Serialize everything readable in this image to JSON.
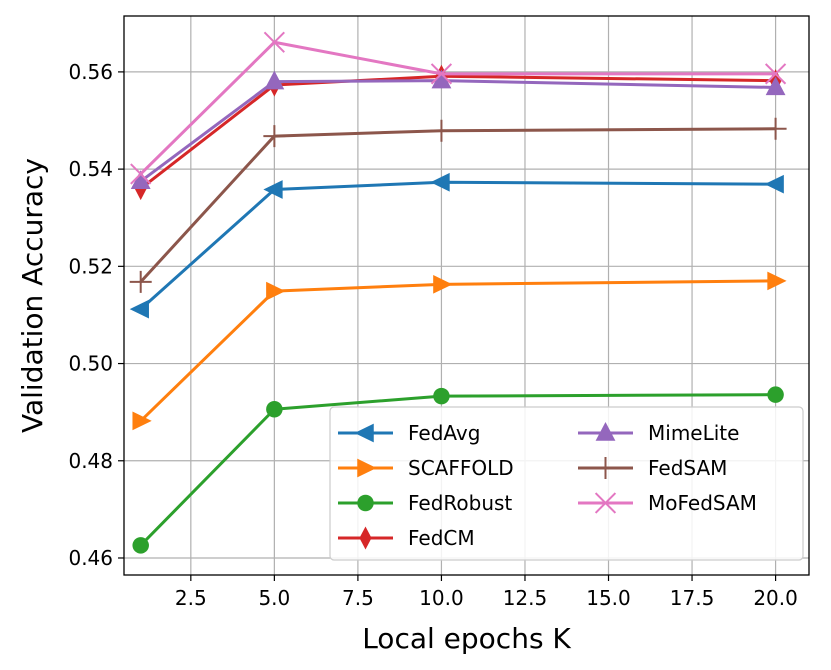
{
  "chart_data": {
    "type": "line",
    "title": "",
    "xlabel": "Local epochs K",
    "ylabel": "Validation Accuracy",
    "xlim": [
      0.5,
      21.0
    ],
    "ylim": [
      0.4565,
      0.5715
    ],
    "xticks": [
      2.5,
      5.0,
      7.5,
      10.0,
      12.5,
      15.0,
      17.5,
      20.0
    ],
    "xtick_labels": [
      "2.5",
      "5.0",
      "7.5",
      "10.0",
      "12.5",
      "15.0",
      "17.5",
      "20.0"
    ],
    "yticks": [
      0.46,
      0.48,
      0.5,
      0.52,
      0.54,
      0.56
    ],
    "ytick_labels": [
      "0.46",
      "0.48",
      "0.50",
      "0.52",
      "0.54",
      "0.56"
    ],
    "grid": true,
    "legend_position": "lower-right",
    "x": [
      1,
      5,
      10,
      20
    ],
    "series": [
      {
        "name": "FedAvg",
        "color": "#1f77b4",
        "marker": "triangle-left",
        "values": [
          0.5112,
          0.5358,
          0.5373,
          0.5369
        ]
      },
      {
        "name": "SCAFFOLD",
        "color": "#ff7f0e",
        "marker": "triangle-right",
        "values": [
          0.4882,
          0.5149,
          0.5163,
          0.517
        ]
      },
      {
        "name": "FedRobust",
        "color": "#2ca02c",
        "marker": "circle",
        "values": [
          0.4626,
          0.4906,
          0.4933,
          0.4936
        ]
      },
      {
        "name": "FedCM",
        "color": "#d62728",
        "marker": "thin-diamond",
        "values": [
          0.536,
          0.5573,
          0.5591,
          0.5582
        ]
      },
      {
        "name": "MimeLite",
        "color": "#9467bd",
        "marker": "triangle-up",
        "values": [
          0.5375,
          0.558,
          0.5582,
          0.5568
        ]
      },
      {
        "name": "FedSAM",
        "color": "#8c564b",
        "marker": "plus",
        "values": [
          0.5168,
          0.5468,
          0.5479,
          0.5483
        ]
      },
      {
        "name": "MoFedSAM",
        "color": "#e377c2",
        "marker": "x",
        "values": [
          0.539,
          0.5661,
          0.5596,
          0.5596
        ]
      }
    ]
  }
}
